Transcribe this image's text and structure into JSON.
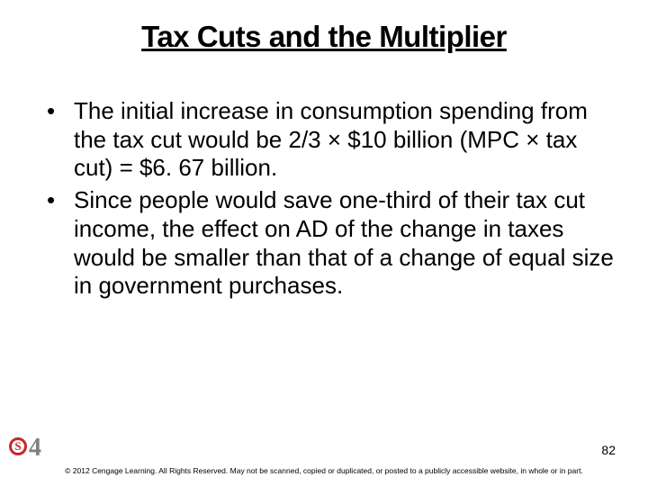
{
  "slide": {
    "title": "Tax Cuts and the Multiplier",
    "title_fontsize": 33,
    "title_color": "#000000",
    "body_fontsize": 26,
    "body_color": "#000000",
    "background_color": "#ffffff",
    "bullets": [
      "The initial increase in consumption spending from the tax cut would be 2/3 × $10 billion (MPC × tax cut) = $6. 67 billion.",
      "Since people would save one-third of their tax cut income, the effect on AD of the change in taxes would be smaller than that of a change of equal size in government purchases."
    ],
    "page_number": "82",
    "copyright": "© 2012 Cengage Learning. All Rights Reserved. May not be scanned, copied or duplicated, or posted to a publicly accessible website, in whole or in part.",
    "logo": {
      "letter": "S",
      "number": "4",
      "circle_color": "#c62828",
      "number_color": "#808080"
    }
  }
}
